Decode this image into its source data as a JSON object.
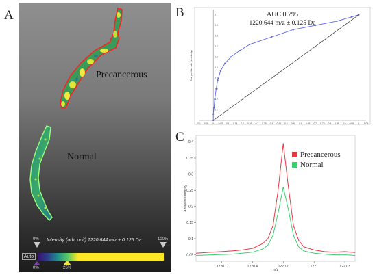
{
  "panel_labels": {
    "a": "A",
    "b": "B",
    "c": "C"
  },
  "panelA": {
    "label_precancerous": "Precancerous",
    "label_normal": "Normal",
    "colorbar_caption": "Intensity (arb. unit) 1220.644 m/z ± 0.125  Da",
    "top_left_pct": "0%",
    "top_right_pct": "100%",
    "bottom_left_pct": "0%",
    "bottom_mid_pct": "25%",
    "auto_label": "Auto",
    "colors": {
      "outline_precancerous": "#ff2020",
      "outline_normal": "#9cff80",
      "colorbar_max": "#fde725"
    }
  },
  "chart_data": [
    {
      "type": "line",
      "title": "AUC 0.795",
      "subtitle": "1220.644 m/z ± 0.125 Da",
      "ylabel": "True positive rate (sensitivity)",
      "x_ticks": [
        "-0.1",
        "-0.05",
        "0",
        "0.05",
        "0.1",
        "0.15",
        "0.2",
        "0.25",
        "0.3",
        "0.35",
        "0.4",
        "0.45",
        "0.5",
        "0.55",
        "0.6",
        "0.65",
        "0.7",
        "0.75",
        "0.8",
        "0.85",
        "0.9",
        "0.95",
        "1",
        "1.05"
      ],
      "y_ticks": [
        "0.1",
        "0.2",
        "0.3",
        "0.4",
        "0.5",
        "0.6",
        "0.7",
        "0.8",
        "0.9",
        "1"
      ],
      "xlim": [
        -0.1,
        1.05
      ],
      "ylim": [
        0,
        1.05
      ],
      "series": [
        {
          "name": "",
          "color": "#5a64e6",
          "x": [
            0,
            0,
            0.005,
            0.01,
            0.02,
            0.03,
            0.05,
            0.08,
            0.12,
            0.18,
            0.25,
            0.4,
            0.55,
            0.7,
            0.85,
            0.95,
            1.0
          ],
          "y": [
            0,
            0.06,
            0.12,
            0.2,
            0.3,
            0.38,
            0.47,
            0.54,
            0.6,
            0.66,
            0.72,
            0.79,
            0.86,
            0.9,
            0.94,
            0.98,
            1.0
          ]
        },
        {
          "name": "",
          "color": "#333333",
          "x": [
            0,
            1
          ],
          "y": [
            0,
            1
          ]
        }
      ]
    },
    {
      "type": "line",
      "ylabel": "Absolute Intensity",
      "xlabel": "m/z",
      "x_ticks": [
        "1220.1",
        "1220.4",
        "1220.7",
        "1221",
        "1221.3"
      ],
      "y_ticks": [
        "0.05",
        "0.1",
        "0.15",
        "0.2",
        "0.25",
        "0.3",
        "0.35",
        "0.4"
      ],
      "xlim": [
        1219.85,
        1221.4
      ],
      "ylim": [
        0.03,
        0.42
      ],
      "series": [
        {
          "name": "Precancerous",
          "color": "#e63946",
          "x": [
            1219.85,
            1220.0,
            1220.1,
            1220.2,
            1220.3,
            1220.4,
            1220.5,
            1220.55,
            1220.6,
            1220.65,
            1220.7,
            1220.75,
            1220.8,
            1220.85,
            1220.9,
            1221.0,
            1221.1,
            1221.2,
            1221.3,
            1221.4
          ],
          "y": [
            0.055,
            0.058,
            0.06,
            0.062,
            0.065,
            0.07,
            0.085,
            0.1,
            0.14,
            0.25,
            0.395,
            0.26,
            0.14,
            0.095,
            0.075,
            0.065,
            0.06,
            0.058,
            0.06,
            0.057
          ]
        },
        {
          "name": "Normal",
          "color": "#3cd070",
          "x": [
            1219.85,
            1220.0,
            1220.1,
            1220.2,
            1220.3,
            1220.4,
            1220.5,
            1220.55,
            1220.6,
            1220.65,
            1220.7,
            1220.75,
            1220.8,
            1220.85,
            1220.9,
            1221.0,
            1221.1,
            1221.2,
            1221.3,
            1221.4
          ],
          "y": [
            0.048,
            0.05,
            0.051,
            0.052,
            0.055,
            0.058,
            0.068,
            0.08,
            0.11,
            0.18,
            0.26,
            0.19,
            0.11,
            0.075,
            0.062,
            0.055,
            0.052,
            0.05,
            0.05,
            0.048
          ]
        }
      ]
    }
  ]
}
